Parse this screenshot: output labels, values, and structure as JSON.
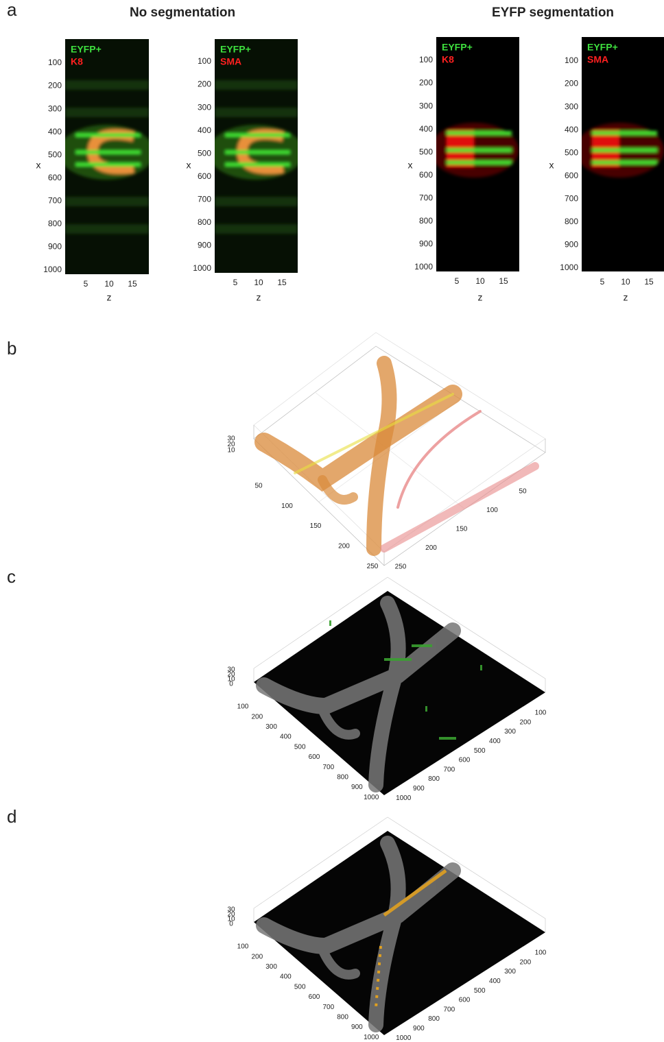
{
  "panel_labels": [
    "a",
    "b",
    "c",
    "d"
  ],
  "panel_a": {
    "titles": [
      "No segmentation",
      "EYFP segmentation"
    ],
    "plots": [
      {
        "legend": [
          "EYFP+",
          "K8"
        ]
      },
      {
        "legend": [
          "EYFP+",
          "SMA"
        ]
      },
      {
        "legend": [
          "EYFP+",
          "K8"
        ]
      },
      {
        "legend": [
          "EYFP+",
          "SMA"
        ]
      }
    ],
    "x_label": "x",
    "z_label": "z",
    "x_ticks": [
      100,
      200,
      300,
      400,
      500,
      600,
      700,
      800,
      900,
      1000
    ],
    "z_ticks": [
      5,
      10,
      15
    ]
  },
  "panel_b": {
    "z_ticks": [
      30,
      20,
      10
    ],
    "left_ticks": [
      50,
      100,
      150,
      200,
      250
    ],
    "right_ticks": [
      50,
      100,
      150,
      200,
      250
    ]
  },
  "panel_c": {
    "z_ticks": [
      30,
      20,
      10,
      0
    ],
    "left_ticks": [
      100,
      200,
      300,
      400,
      500,
      600,
      700,
      800,
      900,
      1000
    ],
    "right_ticks": [
      100,
      200,
      300,
      400,
      500,
      600,
      700,
      800,
      900,
      1000
    ]
  },
  "panel_d": {
    "z_ticks": [
      30,
      20,
      10,
      0
    ],
    "left_ticks": [
      100,
      200,
      300,
      400,
      500,
      600,
      700,
      800,
      900,
      1000
    ],
    "right_ticks": [
      100,
      200,
      300,
      400,
      500,
      600,
      700,
      800,
      900,
      1000
    ]
  }
}
